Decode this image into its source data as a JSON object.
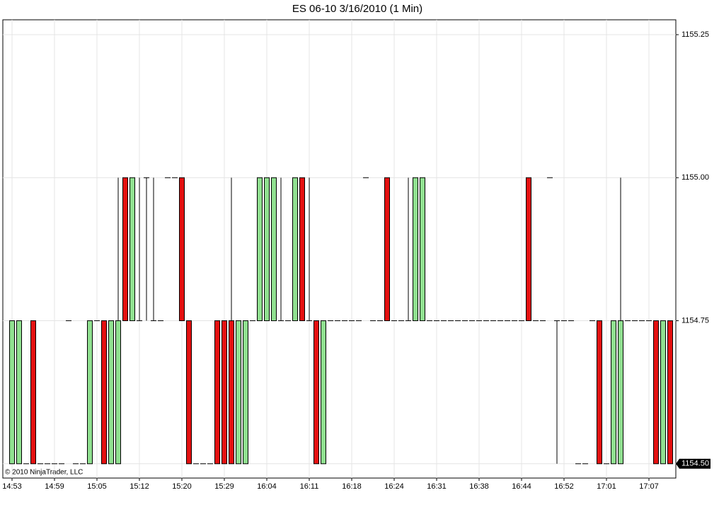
{
  "chart_data": {
    "type": "candlestick",
    "title": "ES 06-10  3/16/2010 (1 Min)",
    "copyright": "© 2010 NinjaTrader, LLC",
    "categories": [
      "14:53",
      null,
      null,
      null,
      null,
      null,
      "14:59",
      null,
      null,
      null,
      null,
      null,
      "15:05",
      null,
      null,
      null,
      null,
      null,
      "15:12",
      null,
      null,
      null,
      null,
      null,
      "15:20",
      null,
      null,
      null,
      null,
      null,
      "15:29",
      null,
      null,
      null,
      null,
      null,
      "16:04",
      null,
      null,
      null,
      null,
      null,
      "16:11",
      null,
      null,
      null,
      null,
      null,
      "16:18",
      null,
      null,
      null,
      null,
      null,
      "16:24",
      null,
      null,
      null,
      null,
      null,
      "16:31",
      null,
      null,
      null,
      null,
      null,
      "16:38",
      null,
      null,
      null,
      null,
      null,
      "16:44",
      null,
      null,
      null,
      null,
      null,
      "16:52",
      null,
      null,
      null,
      null,
      null,
      "17:01",
      null,
      null,
      null,
      null,
      null,
      "17:07",
      null,
      null,
      null
    ],
    "open": [
      1154.5,
      1154.5,
      1154.5,
      1154.75,
      1154.5,
      1154.5,
      1154.5,
      1154.5,
      1154.75,
      1154.5,
      1154.5,
      1154.5,
      1154.75,
      1154.75,
      1154.5,
      1154.5,
      1155,
      1154.75,
      1154.75,
      1155,
      1154.75,
      1154.75,
      1155,
      1155,
      1155,
      1154.75,
      1154.5,
      1154.5,
      1154.5,
      1154.75,
      1154.75,
      1154.75,
      1154.5,
      1154.5,
      1154.75,
      1154.75,
      1154.75,
      1154.75,
      1154.75,
      1154.75,
      1154.75,
      1155,
      1154.75,
      1154.75,
      1154.5,
      1154.75,
      1154.75,
      1154.75,
      1154.75,
      1154.75,
      1155,
      1154.75,
      1154.75,
      1155,
      1154.75,
      1154.75,
      1154.75,
      1154.75,
      1154.75,
      1154.75,
      1154.75,
      1154.75,
      1154.75,
      1154.75,
      1154.75,
      1154.75,
      1154.75,
      1154.75,
      1154.75,
      1154.75,
      1154.75,
      1154.75,
      1154.75,
      1155,
      1154.75,
      1154.75,
      1155,
      1154.75,
      1154.75,
      1154.75,
      1154.5,
      1154.5,
      1154.75,
      1154.75,
      1154.5,
      1154.5,
      1154.5,
      1154.75,
      1154.75,
      1154.75,
      1154.75,
      1154.75,
      1154.5,
      1154.75
    ],
    "high": [
      1154.75,
      1154.75,
      1154.5,
      1154.75,
      1154.5,
      1154.5,
      1154.5,
      1154.5,
      1154.75,
      1154.5,
      1154.5,
      1154.75,
      1154.75,
      1154.75,
      1154.75,
      1155,
      1155,
      1155,
      1155,
      1155,
      1155,
      1154.75,
      1155,
      1155,
      1155,
      1154.75,
      1154.5,
      1154.5,
      1154.5,
      1154.75,
      1154.75,
      1155,
      1154.75,
      1154.75,
      1154.75,
      1155,
      1155,
      1155,
      1155,
      1154.75,
      1155,
      1155,
      1155,
      1154.75,
      1154.75,
      1154.75,
      1154.75,
      1154.75,
      1154.75,
      1154.75,
      1155,
      1154.75,
      1154.75,
      1155,
      1154.75,
      1154.75,
      1155,
      1155,
      1155,
      1154.75,
      1154.75,
      1154.75,
      1154.75,
      1154.75,
      1154.75,
      1154.75,
      1154.75,
      1154.75,
      1154.75,
      1154.75,
      1154.75,
      1154.75,
      1154.75,
      1155,
      1154.75,
      1154.75,
      1155,
      1154.75,
      1154.75,
      1154.75,
      1154.5,
      1154.5,
      1154.75,
      1154.75,
      1154.5,
      1154.75,
      1155,
      1154.75,
      1154.75,
      1154.75,
      1154.75,
      1154.75,
      1154.75,
      1154.75
    ],
    "low": [
      1154.5,
      1154.5,
      1154.5,
      1154.5,
      1154.5,
      1154.5,
      1154.5,
      1154.5,
      1154.75,
      1154.5,
      1154.5,
      1154.5,
      1154.75,
      1154.5,
      1154.5,
      1154.5,
      1154.75,
      1154.75,
      1154.75,
      1154.75,
      1154.75,
      1154.75,
      1155,
      1155,
      1154.75,
      1154.5,
      1154.5,
      1154.5,
      1154.5,
      1154.5,
      1154.5,
      1154.5,
      1154.5,
      1154.5,
      1154.75,
      1154.75,
      1154.75,
      1154.75,
      1154.75,
      1154.75,
      1154.75,
      1154.75,
      1154.75,
      1154.5,
      1154.5,
      1154.75,
      1154.75,
      1154.75,
      1154.75,
      1154.75,
      1155,
      1154.75,
      1154.75,
      1154.75,
      1154.75,
      1154.75,
      1154.75,
      1154.75,
      1154.75,
      1154.75,
      1154.75,
      1154.75,
      1154.75,
      1154.75,
      1154.75,
      1154.75,
      1154.75,
      1154.75,
      1154.75,
      1154.75,
      1154.75,
      1154.75,
      1154.75,
      1154.75,
      1154.75,
      1154.75,
      1155,
      1154.5,
      1154.75,
      1154.75,
      1154.5,
      1154.5,
      1154.75,
      1154.5,
      1154.5,
      1154.5,
      1154.5,
      1154.75,
      1154.75,
      1154.75,
      1154.75,
      1154.5,
      1154.5,
      1154.5
    ],
    "close": [
      1154.75,
      1154.75,
      1154.5,
      1154.5,
      1154.5,
      1154.5,
      1154.5,
      1154.5,
      1154.75,
      1154.5,
      1154.5,
      1154.75,
      1154.75,
      1154.5,
      1154.75,
      1154.75,
      1154.75,
      1155,
      1154.75,
      1155,
      1154.75,
      1154.75,
      1155,
      1155,
      1154.75,
      1154.5,
      1154.5,
      1154.5,
      1154.5,
      1154.5,
      1154.5,
      1154.5,
      1154.75,
      1154.75,
      1154.75,
      1155,
      1155,
      1155,
      1154.75,
      1154.75,
      1155,
      1154.75,
      1154.75,
      1154.5,
      1154.75,
      1154.75,
      1154.75,
      1154.75,
      1154.75,
      1154.75,
      1155,
      1154.75,
      1154.75,
      1154.75,
      1154.75,
      1154.75,
      1154.75,
      1155,
      1155,
      1154.75,
      1154.75,
      1154.75,
      1154.75,
      1154.75,
      1154.75,
      1154.75,
      1154.75,
      1154.75,
      1154.75,
      1154.75,
      1154.75,
      1154.75,
      1154.75,
      1154.75,
      1154.75,
      1154.75,
      1155,
      1154.75,
      1154.75,
      1154.75,
      1154.5,
      1154.5,
      1154.75,
      1154.5,
      1154.5,
      1154.75,
      1154.75,
      1154.75,
      1154.75,
      1154.75,
      1154.75,
      1154.5,
      1154.75,
      1154.5
    ],
    "up_color": "#90e090",
    "down_color": "#e41010",
    "ylim": [
      1154.475,
      1155.276
    ],
    "yticks": [
      {
        "value": 1154.5,
        "label": "1154.50"
      },
      1154.75,
      {
        "value": 1155,
        "label": "1155.00"
      },
      1155.25
    ],
    "last_price": {
      "value": 1154.5,
      "label": "1154.50"
    },
    "grid": true
  }
}
